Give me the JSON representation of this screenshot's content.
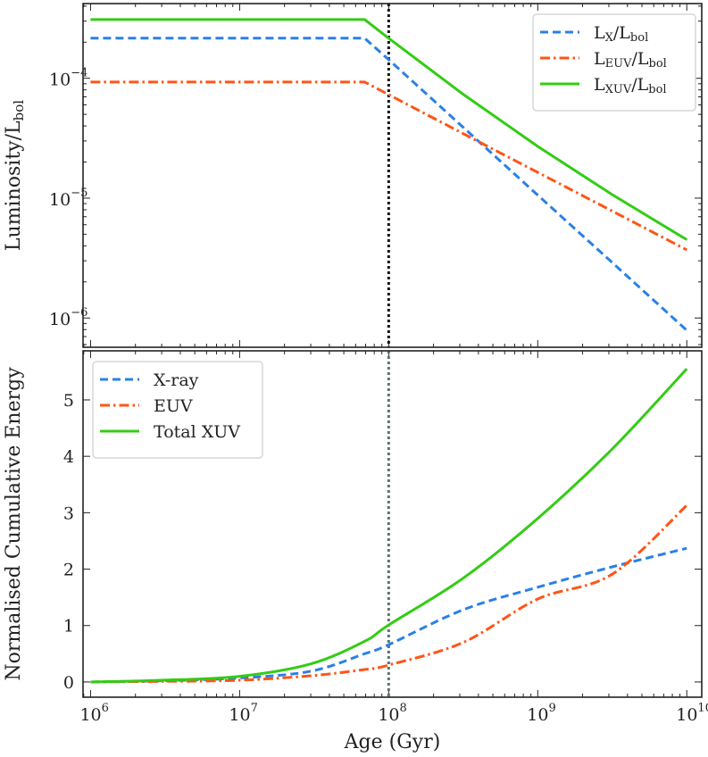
{
  "colors": {
    "xray": "#2b80e6",
    "euv": "#ff5517",
    "xuv": "#33cc14",
    "vline_top": "#111111",
    "vline_bottom": "#5f7272"
  },
  "chart_data": [
    {
      "type": "line",
      "xscale": "log",
      "yscale": "log",
      "xlim": [
        890000.0,
        12600000000.0
      ],
      "ylim": [
        5.7e-07,
        0.00042
      ],
      "xticks": [
        {
          "value": 1000000.0,
          "base": "10",
          "exp": "6"
        },
        {
          "value": 10000000.0,
          "base": "10",
          "exp": "7"
        },
        {
          "value": 100000000.0,
          "base": "10",
          "exp": "8"
        },
        {
          "value": 1000000000.0,
          "base": "10",
          "exp": "9"
        },
        {
          "value": 10000000000.0,
          "base": "10",
          "exp": "10"
        }
      ],
      "yticks": [
        {
          "value": 0.0001,
          "base": "10",
          "exp": "−4"
        },
        {
          "value": 1e-05,
          "base": "10",
          "exp": "−5"
        },
        {
          "value": 1e-06,
          "base": "10",
          "exp": "−6"
        }
      ],
      "ylabel": {
        "main": "Luminosity/L",
        "sub": "bol"
      },
      "vline": 100000000.0,
      "legend_position": "top-right",
      "x": [
        1000000.0,
        69000000.0,
        100000000.0,
        316000000.0,
        1000000000.0,
        3160000000.0,
        10000000000.0
      ],
      "series": [
        {
          "key": "xray",
          "style": "dashed",
          "label": {
            "a": "L",
            "sa": "X",
            "b": "/L",
            "sb": "bol"
          },
          "values": [
            0.000216,
            0.000216,
            0.000143,
            3.9e-05,
            1.06e-05,
            2.9e-06,
            7.9e-07
          ]
        },
        {
          "key": "euv",
          "style": "dashdot",
          "label": {
            "a": "L",
            "sa": "EUV",
            "b": "/L",
            "sb": "bol"
          },
          "values": [
            9.3e-05,
            9.3e-05,
            7.3e-05,
            3.45e-05,
            1.64e-05,
            7.8e-06,
            3.7e-06
          ]
        },
        {
          "key": "xuv",
          "style": "solid",
          "label": {
            "a": "L",
            "sa": "XUV",
            "b": "/L",
            "sb": "bol"
          },
          "values": [
            0.000309,
            0.000309,
            0.000216,
            7.35e-05,
            2.7e-05,
            1.07e-05,
            4.5e-06
          ]
        }
      ]
    },
    {
      "type": "line",
      "xscale": "log",
      "yscale": "linear",
      "xlim": [
        890000.0,
        12600000000.0
      ],
      "ylim": [
        -0.27,
        5.87
      ],
      "xticks": [
        {
          "value": 1000000.0,
          "base": "10",
          "exp": "6"
        },
        {
          "value": 10000000.0,
          "base": "10",
          "exp": "7"
        },
        {
          "value": 100000000.0,
          "base": "10",
          "exp": "8"
        },
        {
          "value": 1000000000.0,
          "base": "10",
          "exp": "9"
        },
        {
          "value": 10000000000.0,
          "base": "10",
          "exp": "10"
        }
      ],
      "yticks": [
        {
          "value": 0,
          "label": "0"
        },
        {
          "value": 1,
          "label": "1"
        },
        {
          "value": 2,
          "label": "2"
        },
        {
          "value": 3,
          "label": "3"
        },
        {
          "value": 4,
          "label": "4"
        },
        {
          "value": 5,
          "label": "5"
        }
      ],
      "xlabel": "Age (Gyr)",
      "ylabel": "Normalised Cumulative Energy",
      "vline": 100000000.0,
      "legend_position": "top-left",
      "x": [
        1000000.0,
        3000000.0,
        10000000.0,
        30000000.0,
        69000000.0,
        100000000.0,
        316000000.0,
        1000000000.0,
        3160000000.0,
        10000000000.0
      ],
      "series": [
        {
          "key": "xray",
          "style": "dashed",
          "name": "X-ray",
          "values": [
            0,
            0.02,
            0.07,
            0.19,
            0.5,
            0.66,
            1.28,
            1.68,
            2.04,
            2.37
          ]
        },
        {
          "key": "euv",
          "style": "dashdot",
          "name": "EUV",
          "values": [
            0,
            0.01,
            0.03,
            0.11,
            0.22,
            0.3,
            0.7,
            1.47,
            1.91,
            3.13
          ]
        },
        {
          "key": "xuv",
          "style": "solid",
          "name": "Total XUV",
          "values": [
            0,
            0.03,
            0.1,
            0.32,
            0.72,
            1.01,
            1.84,
            2.9,
            4.13,
            5.55
          ]
        }
      ]
    }
  ]
}
